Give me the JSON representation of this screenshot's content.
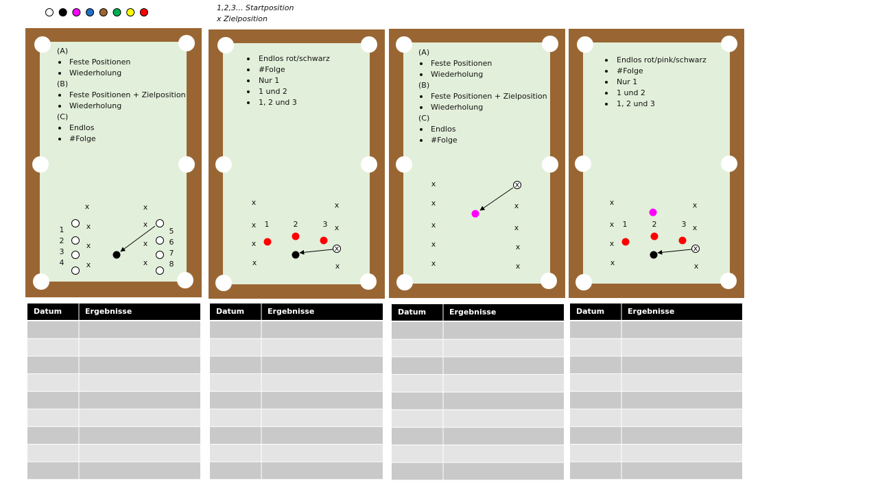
{
  "legend": {
    "start": "1,2,3... Startposition",
    "target": "x Zielposition"
  },
  "target_mark": "x",
  "tables": [
    {
      "lines": [
        {
          "text": "(A)",
          "bullet": false
        },
        {
          "text": "Feste Positionen",
          "bullet": true
        },
        {
          "text": "Wiederholung",
          "bullet": true
        },
        {
          "text": "(B)",
          "bullet": false
        },
        {
          "text": "Feste Positionen + Zielposition",
          "bullet": true
        },
        {
          "text": "Wiederholung",
          "bullet": true
        },
        {
          "text": "(C)",
          "bullet": false
        },
        {
          "text": "Endlos",
          "bullet": true
        },
        {
          "text": "#Folge",
          "bullet": true
        }
      ],
      "numbers": [
        1,
        2,
        3,
        4,
        5,
        6,
        7,
        8
      ]
    },
    {
      "lines": [
        {
          "text": "Endlos rot/schwarz",
          "bullet": true
        },
        {
          "text": "#Folge",
          "bullet": true
        },
        {
          "text": "Nur 1",
          "bullet": true
        },
        {
          "text": "1 und 2",
          "bullet": true
        },
        {
          "text": "1, 2 und 3",
          "bullet": true
        }
      ],
      "numbers": [
        1,
        2,
        3
      ]
    },
    {
      "lines": [
        {
          "text": "(A)",
          "bullet": false
        },
        {
          "text": "Feste Positionen",
          "bullet": true
        },
        {
          "text": "Wiederholung",
          "bullet": true
        },
        {
          "text": "(B)",
          "bullet": false
        },
        {
          "text": "Feste Positionen + Zielposition",
          "bullet": true
        },
        {
          "text": "Wiederholung",
          "bullet": true
        },
        {
          "text": "(C)",
          "bullet": false
        },
        {
          "text": "Endlos",
          "bullet": true
        },
        {
          "text": "#Folge",
          "bullet": true
        }
      ],
      "numbers": []
    },
    {
      "lines": [
        {
          "text": "Endlos rot/pink/schwarz",
          "bullet": true
        },
        {
          "text": "#Folge",
          "bullet": true
        },
        {
          "text": "Nur 1",
          "bullet": true
        },
        {
          "text": "1 und 2",
          "bullet": true
        },
        {
          "text": "1, 2 und 3",
          "bullet": true
        }
      ],
      "numbers": [
        1,
        2,
        3
      ]
    }
  ],
  "results": [
    {
      "columns": [
        "Datum",
        "Ergebnisse"
      ]
    },
    {
      "columns": [
        "Datum",
        "Ergebnisse"
      ]
    },
    {
      "columns": [
        "Datum",
        "Ergebnisse"
      ]
    },
    {
      "columns": [
        "Datum",
        "Ergebnisse"
      ]
    }
  ]
}
